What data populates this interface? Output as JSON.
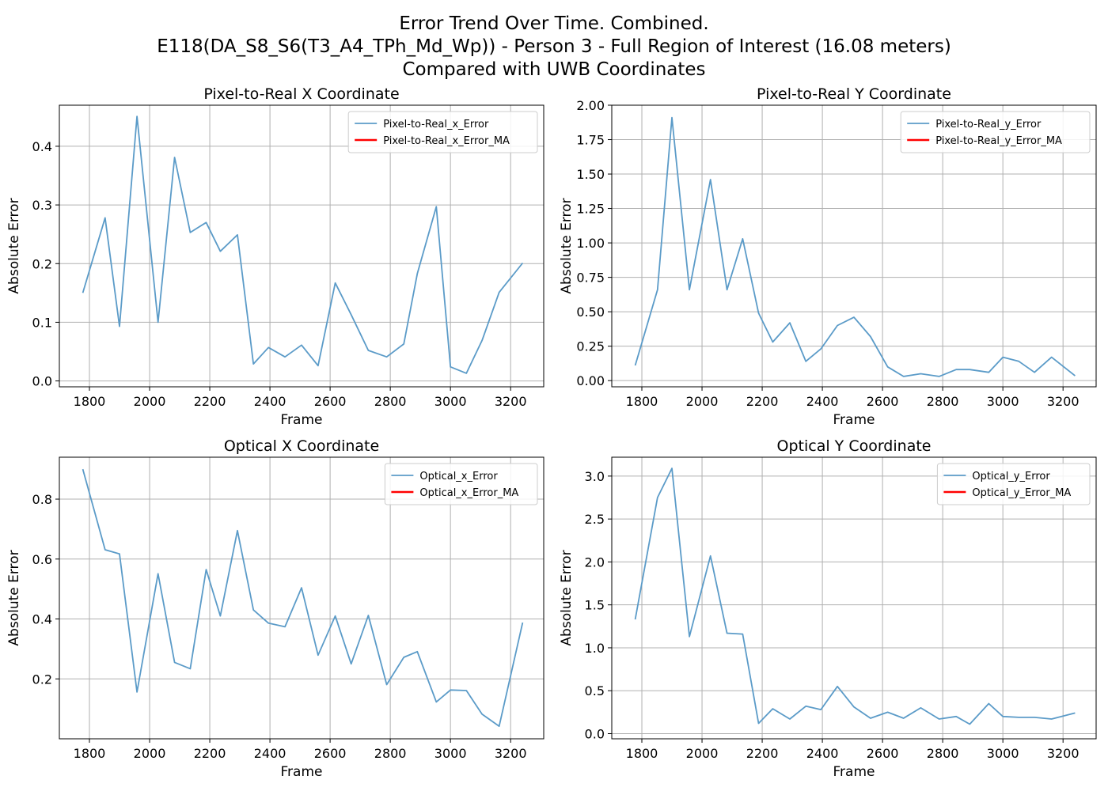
{
  "figure": {
    "title_lines": [
      "Error Trend Over Time. Combined.",
      "E118(DA_S8_S6(T3_A4_TPh_Md_Wp)) - Person 3 - Full Region of Interest (16.08 meters)",
      "Compared with UWB Coordinates"
    ]
  },
  "colors": {
    "series": "#5b9bc8",
    "ma": "#ff0000",
    "grid": "#b0b0b0"
  },
  "chart_data": [
    {
      "type": "line",
      "title": "Pixel-to-Real X Coordinate",
      "xlabel": "Frame",
      "ylabel": "Absolute Error",
      "xlim": [
        1700,
        3310
      ],
      "ylim": [
        -0.01,
        0.47
      ],
      "xticks": [
        1800,
        2000,
        2200,
        2400,
        2600,
        2800,
        3000,
        3200
      ],
      "yticks": [
        0.0,
        0.1,
        0.2,
        0.3,
        0.4
      ],
      "ytick_labels": [
        "0.0",
        "0.1",
        "0.2",
        "0.3",
        "0.4"
      ],
      "legend_position": "top-right",
      "series": [
        {
          "name": "Pixel-to-Real_x_Error",
          "x": [
            1778,
            1852,
            1900,
            1958,
            2028,
            2083,
            2135,
            2188,
            2235,
            2292,
            2345,
            2395,
            2450,
            2505,
            2560,
            2617,
            2670,
            2727,
            2788,
            2845,
            2890,
            2953,
            3000,
            3053,
            3105,
            3162,
            3240
          ],
          "y": [
            0.15,
            0.278,
            0.093,
            0.451,
            0.1,
            0.381,
            0.253,
            0.27,
            0.221,
            0.249,
            0.029,
            0.057,
            0.041,
            0.061,
            0.026,
            0.167,
            0.113,
            0.052,
            0.041,
            0.063,
            0.183,
            0.297,
            0.024,
            0.013,
            0.069,
            0.151,
            0.201
          ]
        },
        {
          "name": "Pixel-to-Real_x_Error_MA",
          "x": [],
          "y": []
        }
      ]
    },
    {
      "type": "line",
      "title": "Pixel-to-Real Y Coordinate",
      "xlabel": "Frame",
      "ylabel": "Absolute Error",
      "xlim": [
        1700,
        3310
      ],
      "ylim": [
        -0.045,
        2.0
      ],
      "xticks": [
        1800,
        2000,
        2200,
        2400,
        2600,
        2800,
        3000,
        3200
      ],
      "yticks": [
        0.0,
        0.25,
        0.5,
        0.75,
        1.0,
        1.25,
        1.5,
        1.75,
        2.0
      ],
      "ytick_labels": [
        "0.00",
        "0.25",
        "0.50",
        "0.75",
        "1.00",
        "1.25",
        "1.50",
        "1.75",
        "2.00"
      ],
      "legend_position": "top-right",
      "series": [
        {
          "name": "Pixel-to-Real_y_Error",
          "x": [
            1778,
            1852,
            1900,
            1958,
            2028,
            2083,
            2135,
            2188,
            2235,
            2292,
            2345,
            2395,
            2450,
            2505,
            2560,
            2617,
            2670,
            2727,
            2788,
            2845,
            2890,
            2953,
            3000,
            3053,
            3105,
            3162,
            3240
          ],
          "y": [
            0.11,
            0.66,
            1.91,
            0.66,
            1.46,
            0.66,
            1.03,
            0.49,
            0.28,
            0.42,
            0.14,
            0.23,
            0.4,
            0.46,
            0.32,
            0.1,
            0.03,
            0.05,
            0.03,
            0.08,
            0.08,
            0.06,
            0.17,
            0.14,
            0.06,
            0.17,
            0.035
          ]
        },
        {
          "name": "Pixel-to-Real_y_Error_MA",
          "x": [],
          "y": []
        }
      ]
    },
    {
      "type": "line",
      "title": "Optical X Coordinate",
      "xlabel": "Frame",
      "ylabel": "Absolute Error",
      "xlim": [
        1700,
        3310
      ],
      "ylim": [
        0.0,
        0.94
      ],
      "xticks": [
        1800,
        2000,
        2200,
        2400,
        2600,
        2800,
        3000,
        3200
      ],
      "yticks": [
        0.2,
        0.4,
        0.6,
        0.8
      ],
      "ytick_labels": [
        "0.2",
        "0.4",
        "0.6",
        "0.8"
      ],
      "legend_position": "top-right",
      "series": [
        {
          "name": "Optical_x_Error",
          "x": [
            1778,
            1852,
            1900,
            1958,
            2028,
            2083,
            2135,
            2188,
            2235,
            2292,
            2345,
            2395,
            2450,
            2505,
            2560,
            2617,
            2670,
            2727,
            2788,
            2845,
            2890,
            2953,
            3000,
            3053,
            3105,
            3162,
            3240
          ],
          "y": [
            0.9,
            0.631,
            0.617,
            0.156,
            0.551,
            0.255,
            0.234,
            0.565,
            0.41,
            0.695,
            0.43,
            0.386,
            0.374,
            0.504,
            0.279,
            0.41,
            0.25,
            0.412,
            0.181,
            0.272,
            0.291,
            0.123,
            0.163,
            0.161,
            0.082,
            0.042,
            0.388
          ]
        },
        {
          "name": "Optical_x_Error_MA",
          "x": [],
          "y": []
        }
      ]
    },
    {
      "type": "line",
      "title": "Optical Y Coordinate",
      "xlabel": "Frame",
      "ylabel": "Absolute Error",
      "xlim": [
        1700,
        3310
      ],
      "ylim": [
        -0.06,
        3.22
      ],
      "xticks": [
        1800,
        2000,
        2200,
        2400,
        2600,
        2800,
        3000,
        3200
      ],
      "yticks": [
        0.0,
        0.5,
        1.0,
        1.5,
        2.0,
        2.5,
        3.0
      ],
      "ytick_labels": [
        "0.0",
        "0.5",
        "1.0",
        "1.5",
        "2.0",
        "2.5",
        "3.0"
      ],
      "legend_position": "top-right",
      "series": [
        {
          "name": "Optical_y_Error",
          "x": [
            1778,
            1852,
            1900,
            1958,
            2028,
            2083,
            2135,
            2188,
            2235,
            2292,
            2345,
            2395,
            2450,
            2505,
            2560,
            2617,
            2670,
            2727,
            2788,
            2845,
            2890,
            2953,
            3000,
            3053,
            3105,
            3162,
            3240
          ],
          "y": [
            1.33,
            2.75,
            3.09,
            1.13,
            2.07,
            1.17,
            1.16,
            0.12,
            0.29,
            0.17,
            0.32,
            0.28,
            0.55,
            0.31,
            0.18,
            0.25,
            0.18,
            0.3,
            0.17,
            0.2,
            0.11,
            0.35,
            0.2,
            0.19,
            0.19,
            0.17,
            0.24
          ]
        },
        {
          "name": "Optical_y_Error_MA",
          "x": [],
          "y": []
        }
      ]
    }
  ]
}
